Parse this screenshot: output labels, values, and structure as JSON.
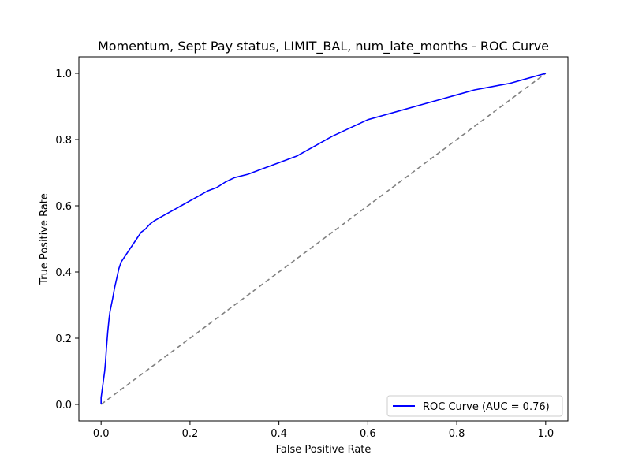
{
  "chart_data": {
    "type": "line",
    "title": "Momentum, Sept Pay status, LIMIT_BAL, num_late_months - ROC Curve",
    "xlabel": "False Positive Rate",
    "ylabel": "True Positive Rate",
    "xlim": [
      -0.05,
      1.05
    ],
    "ylim": [
      -0.05,
      1.05
    ],
    "xticks": [
      "0.0",
      "0.2",
      "0.4",
      "0.6",
      "0.8",
      "1.0"
    ],
    "yticks": [
      "0.0",
      "0.2",
      "0.4",
      "0.6",
      "0.8",
      "1.0"
    ],
    "grid": false,
    "legend_position": "lower-right",
    "series": [
      {
        "name": "ROC Curve (AUC = 0.76)",
        "color": "#0000ff",
        "style": "solid",
        "x": [
          0.0,
          0.0,
          0.002,
          0.004,
          0.006,
          0.008,
          0.01,
          0.012,
          0.015,
          0.018,
          0.02,
          0.023,
          0.026,
          0.03,
          0.035,
          0.04,
          0.045,
          0.05,
          0.055,
          0.06,
          0.065,
          0.07,
          0.08,
          0.09,
          0.1,
          0.11,
          0.12,
          0.14,
          0.16,
          0.18,
          0.2,
          0.22,
          0.24,
          0.26,
          0.28,
          0.3,
          0.33,
          0.36,
          0.4,
          0.44,
          0.48,
          0.52,
          0.56,
          0.6,
          0.64,
          0.68,
          0.72,
          0.76,
          0.8,
          0.84,
          0.88,
          0.92,
          0.96,
          1.0
        ],
        "y": [
          0.0,
          0.02,
          0.04,
          0.06,
          0.08,
          0.1,
          0.13,
          0.17,
          0.22,
          0.26,
          0.28,
          0.3,
          0.32,
          0.35,
          0.38,
          0.41,
          0.43,
          0.44,
          0.45,
          0.46,
          0.47,
          0.48,
          0.5,
          0.52,
          0.53,
          0.545,
          0.555,
          0.57,
          0.585,
          0.6,
          0.615,
          0.63,
          0.645,
          0.655,
          0.672,
          0.685,
          0.695,
          0.71,
          0.73,
          0.75,
          0.78,
          0.81,
          0.835,
          0.86,
          0.875,
          0.89,
          0.905,
          0.92,
          0.935,
          0.95,
          0.96,
          0.97,
          0.985,
          1.0
        ]
      },
      {
        "name": "",
        "color": "#808080",
        "style": "dashed",
        "x": [
          0.0,
          1.0
        ],
        "y": [
          0.0,
          1.0
        ]
      }
    ]
  }
}
